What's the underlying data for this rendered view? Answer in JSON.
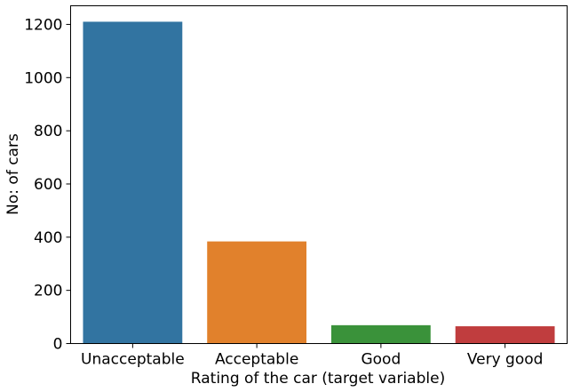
{
  "chart_data": {
    "type": "bar",
    "title": "",
    "xlabel": "Rating of the car (target variable)",
    "ylabel": "No: of cars",
    "categories": [
      "Unacceptable",
      "Acceptable",
      "Good",
      "Very good"
    ],
    "values": [
      1210,
      384,
      69,
      65
    ],
    "ylim": [
      0,
      1270
    ],
    "yticks": [
      0,
      200,
      400,
      600,
      800,
      1000,
      1200
    ],
    "grid": false,
    "colors": [
      "#3274a1",
      "#e1812c",
      "#3a923a",
      "#c03d3e"
    ]
  }
}
